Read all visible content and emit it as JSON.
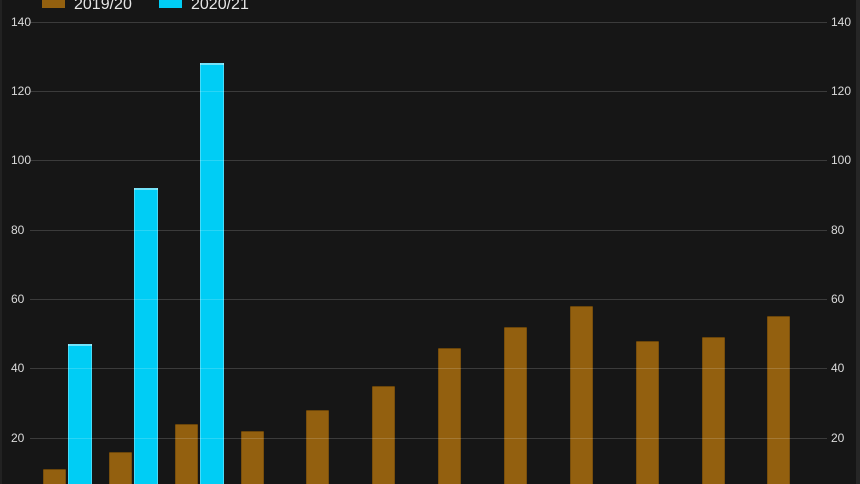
{
  "legend": {
    "items": [
      {
        "label": "2019/20",
        "color": "#93600f"
      },
      {
        "label": "2020/21",
        "color": "#00cdf5"
      }
    ]
  },
  "y_axis": {
    "tick_labels": [
      "20",
      "40",
      "60",
      "80",
      "100",
      "120",
      "140"
    ],
    "sides": "both"
  },
  "chart_data": {
    "type": "bar",
    "title": "",
    "xlabel": "",
    "ylabel": "",
    "categories": [
      "",
      "",
      "",
      "",
      "",
      "",
      "",
      "",
      "",
      "",
      "",
      ""
    ],
    "series": [
      {
        "name": "2019/20",
        "color": "#93600f",
        "values": [
          11,
          16,
          24,
          22,
          28,
          35,
          46,
          52,
          58,
          48,
          49,
          55
        ]
      },
      {
        "name": "2020/21",
        "color": "#00cdf5",
        "values": [
          47,
          92,
          128,
          null,
          null,
          null,
          null,
          null,
          null,
          null,
          null,
          null
        ]
      }
    ],
    "y_ticks": [
      20,
      40,
      60,
      80,
      100,
      120,
      140
    ],
    "ylim": [
      0,
      145
    ],
    "grid": true,
    "legend_position": "top-left",
    "layout_hints": {
      "cropped_top_legend": true,
      "cropped_bottom_x_axis": true,
      "y_axis_labels_on_both_sides": true,
      "gridlines_overlay_bars": true
    }
  },
  "colors": {
    "background": "#161616",
    "gridline": "rgba(255,255,255,0.16)",
    "axis_label": "#dadada"
  }
}
